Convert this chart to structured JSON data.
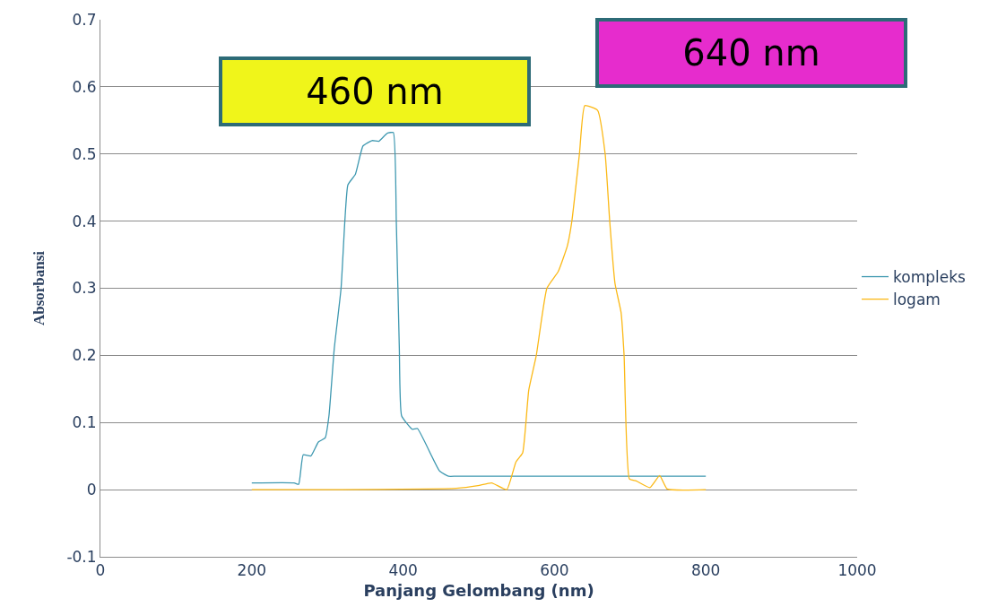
{
  "chart_data": {
    "type": "line",
    "xlabel": "Panjang Gelombang (nm)",
    "ylabel": "Absorbansi",
    "annotations": [
      "460 nm",
      "640 nm"
    ],
    "xlim": [
      0,
      1000
    ],
    "xticks": [
      0,
      200,
      400,
      600,
      800,
      1000
    ],
    "ylim": [
      -0.1,
      0.7
    ],
    "yticks": [
      -0.1,
      0,
      0.1,
      0.2,
      0.3,
      0.4,
      0.5,
      0.6,
      0.7
    ],
    "grid": "y",
    "legend": "right",
    "marker": "none",
    "line_style": "solid",
    "series": [
      {
        "name": "kompleks",
        "color": "#3e98b0",
        "x": [
          200,
          256,
          262,
          268,
          278,
          288,
          297,
          302,
          309,
          318,
          323,
          327,
          337,
          347,
          359,
          368,
          379,
          387,
          391,
          395,
          398,
          412,
          419,
          448,
          460,
          470,
          800
        ],
        "values": [
          0.01,
          0.01,
          0.008,
          0.052,
          0.05,
          0.071,
          0.077,
          0.11,
          0.21,
          0.3,
          0.4,
          0.454,
          0.47,
          0.512,
          0.52,
          0.519,
          0.531,
          0.532,
          0.4,
          0.21,
          0.11,
          0.09,
          0.091,
          0.028,
          0.02,
          0.02,
          0.02
        ]
      },
      {
        "name": "logam",
        "color": "#fbb917",
        "x": [
          200,
          300,
          470,
          499,
          517,
          537,
          549,
          558,
          566,
          576,
          590,
          605,
          617,
          623,
          633,
          640,
          657,
          667,
          673,
          680,
          688,
          692,
          699,
          708,
          726,
          739,
          749,
          800
        ],
        "values": [
          0,
          0,
          0.002,
          0.006,
          0.01,
          0,
          0.041,
          0.055,
          0.148,
          0.2,
          0.3,
          0.325,
          0.363,
          0.4,
          0.5,
          0.572,
          0.565,
          0.5,
          0.4,
          0.307,
          0.264,
          0.2,
          0.016,
          0.013,
          0.003,
          0.021,
          0.001,
          0
        ]
      }
    ]
  }
}
